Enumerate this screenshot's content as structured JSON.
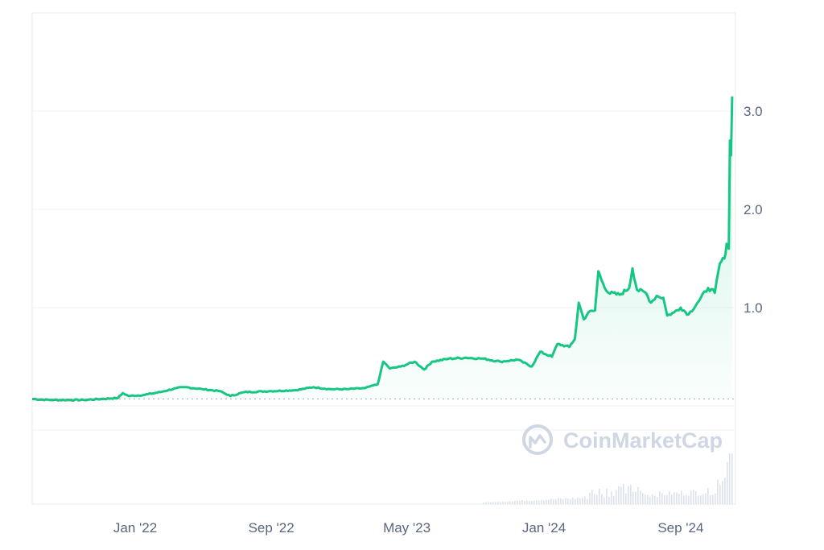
{
  "watermark": {
    "text": "CoinMarketCap",
    "icon": "coinmarketcap-logo-icon"
  },
  "colors": {
    "up": "#16c784",
    "down": "#ea3943",
    "grid": "#eff2f5",
    "axis_text": "#58667e",
    "baseline": "#a6b0c3"
  },
  "chart_data": {
    "type": "area",
    "xlabel": "",
    "ylabel": "",
    "x_ticks": [
      "Jan '22",
      "Sep '22",
      "May '23",
      "Jan '24",
      "Sep '24"
    ],
    "x_tick_dates": [
      "2022-01-01",
      "2022-09-01",
      "2023-05-01",
      "2024-01-01",
      "2024-09-01"
    ],
    "y_ticks": [
      1.0,
      2.0,
      3.0
    ],
    "y_tick_labels": [
      "1.0",
      "2.0",
      "3.0"
    ],
    "ylim": [
      -1.0,
      4.0
    ],
    "xlim": [
      "2021-07-01",
      "2024-12-05"
    ],
    "grid": true,
    "legend": "none",
    "baseline_value": 0.07,
    "series": [
      {
        "color_above": "#16c784",
        "color_below": "#ea3943",
        "points": [
          [
            "2021-07-01",
            0.07
          ],
          [
            "2021-08-01",
            0.06
          ],
          [
            "2021-09-01",
            0.06
          ],
          [
            "2021-10-01",
            0.06
          ],
          [
            "2021-11-01",
            0.07
          ],
          [
            "2021-12-01",
            0.08
          ],
          [
            "2021-12-10",
            0.13
          ],
          [
            "2021-12-20",
            0.1
          ],
          [
            "2022-01-15",
            0.11
          ],
          [
            "2022-02-15",
            0.14
          ],
          [
            "2022-03-15",
            0.18
          ],
          [
            "2022-04-01",
            0.19
          ],
          [
            "2022-05-01",
            0.17
          ],
          [
            "2022-06-01",
            0.15
          ],
          [
            "2022-06-20",
            0.1
          ],
          [
            "2022-07-15",
            0.14
          ],
          [
            "2022-09-01",
            0.15
          ],
          [
            "2022-10-15",
            0.16
          ],
          [
            "2022-11-15",
            0.19
          ],
          [
            "2022-12-15",
            0.17
          ],
          [
            "2023-01-15",
            0.17
          ],
          [
            "2023-02-15",
            0.18
          ],
          [
            "2023-03-10",
            0.22
          ],
          [
            "2023-03-20",
            0.45
          ],
          [
            "2023-04-01",
            0.38
          ],
          [
            "2023-04-20",
            0.4
          ],
          [
            "2023-05-15",
            0.45
          ],
          [
            "2023-06-01",
            0.37
          ],
          [
            "2023-06-15",
            0.45
          ],
          [
            "2023-07-15",
            0.48
          ],
          [
            "2023-08-15",
            0.49
          ],
          [
            "2023-09-15",
            0.48
          ],
          [
            "2023-10-15",
            0.45
          ],
          [
            "2023-11-15",
            0.47
          ],
          [
            "2023-12-10",
            0.4
          ],
          [
            "2023-12-25",
            0.55
          ],
          [
            "2024-01-15",
            0.5
          ],
          [
            "2024-01-25",
            0.63
          ],
          [
            "2024-02-15",
            0.6
          ],
          [
            "2024-02-25",
            0.68
          ],
          [
            "2024-03-03",
            1.05
          ],
          [
            "2024-03-12",
            0.88
          ],
          [
            "2024-03-20",
            0.95
          ],
          [
            "2024-04-01",
            0.97
          ],
          [
            "2024-04-07",
            1.37
          ],
          [
            "2024-04-15",
            1.25
          ],
          [
            "2024-04-25",
            1.15
          ],
          [
            "2024-05-15",
            1.13
          ],
          [
            "2024-06-01",
            1.2
          ],
          [
            "2024-06-07",
            1.4
          ],
          [
            "2024-06-15",
            1.18
          ],
          [
            "2024-07-01",
            1.15
          ],
          [
            "2024-07-10",
            1.05
          ],
          [
            "2024-07-20",
            1.12
          ],
          [
            "2024-08-01",
            1.1
          ],
          [
            "2024-08-08",
            0.92
          ],
          [
            "2024-08-20",
            0.95
          ],
          [
            "2024-09-01",
            1.0
          ],
          [
            "2024-09-15",
            0.93
          ],
          [
            "2024-10-01",
            1.05
          ],
          [
            "2024-10-20",
            1.2
          ],
          [
            "2024-11-01",
            1.15
          ],
          [
            "2024-11-10",
            1.45
          ],
          [
            "2024-11-18",
            1.5
          ],
          [
            "2024-11-22",
            1.65
          ],
          [
            "2024-11-26",
            1.6
          ],
          [
            "2024-11-28",
            2.7
          ],
          [
            "2024-11-30",
            2.55
          ],
          [
            "2024-12-02",
            3.15
          ]
        ]
      }
    ]
  }
}
